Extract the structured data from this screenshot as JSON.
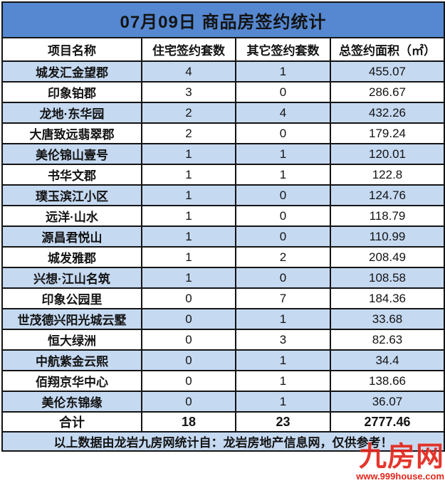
{
  "title": "07月09日 商品房签约统计",
  "table": {
    "headers": [
      "项目名称",
      "住宅签约套数",
      "其它签约套数",
      "总签约面积（㎡）"
    ],
    "rows": [
      {
        "name": "城发汇金望郡",
        "residential": "4",
        "other": "1",
        "area": "455.07"
      },
      {
        "name": "印象铂郡",
        "residential": "3",
        "other": "0",
        "area": "286.67"
      },
      {
        "name": "龙地·东华园",
        "residential": "2",
        "other": "4",
        "area": "432.26"
      },
      {
        "name": "大唐致远翡翠郡",
        "residential": "2",
        "other": "0",
        "area": "179.24"
      },
      {
        "name": "美伦锦山壹号",
        "residential": "1",
        "other": "1",
        "area": "120.01"
      },
      {
        "name": "书华文郡",
        "residential": "1",
        "other": "1",
        "area": "122.8"
      },
      {
        "name": "璞玉滨江小区",
        "residential": "1",
        "other": "0",
        "area": "124.76"
      },
      {
        "name": "远洋·山水",
        "residential": "1",
        "other": "0",
        "area": "118.79"
      },
      {
        "name": "源昌君悦山",
        "residential": "1",
        "other": "0",
        "area": "110.99"
      },
      {
        "name": "城发雅郡",
        "residential": "1",
        "other": "2",
        "area": "208.49"
      },
      {
        "name": "兴想·江山名筑",
        "residential": "1",
        "other": "0",
        "area": "108.58"
      },
      {
        "name": "印象公园里",
        "residential": "0",
        "other": "7",
        "area": "184.36"
      },
      {
        "name": "世茂德兴阳光城云墅",
        "residential": "0",
        "other": "1",
        "area": "33.68"
      },
      {
        "name": "恒大绿洲",
        "residential": "0",
        "other": "3",
        "area": "82.63"
      },
      {
        "name": "中航紫金云熙",
        "residential": "0",
        "other": "1",
        "area": "34.4"
      },
      {
        "name": "佰翔京华中心",
        "residential": "0",
        "other": "1",
        "area": "138.66"
      },
      {
        "name": "美伦东锦缘",
        "residential": "0",
        "other": "1",
        "area": "36.07"
      }
    ],
    "total": {
      "label": "合计",
      "residential": "18",
      "other": "23",
      "area": "2777.46"
    }
  },
  "footer": {
    "note": "以上数据由龙岩九房网统计自：龙岩房地产信息网，仅供参考！"
  },
  "watermark": {
    "brand": "九房网",
    "url": "www.999house.com"
  },
  "colors": {
    "title_bg": "#5588d0",
    "alt_row_bg": "#c5d9f1",
    "border": "#141414",
    "watermark_red": "#e2261b"
  }
}
